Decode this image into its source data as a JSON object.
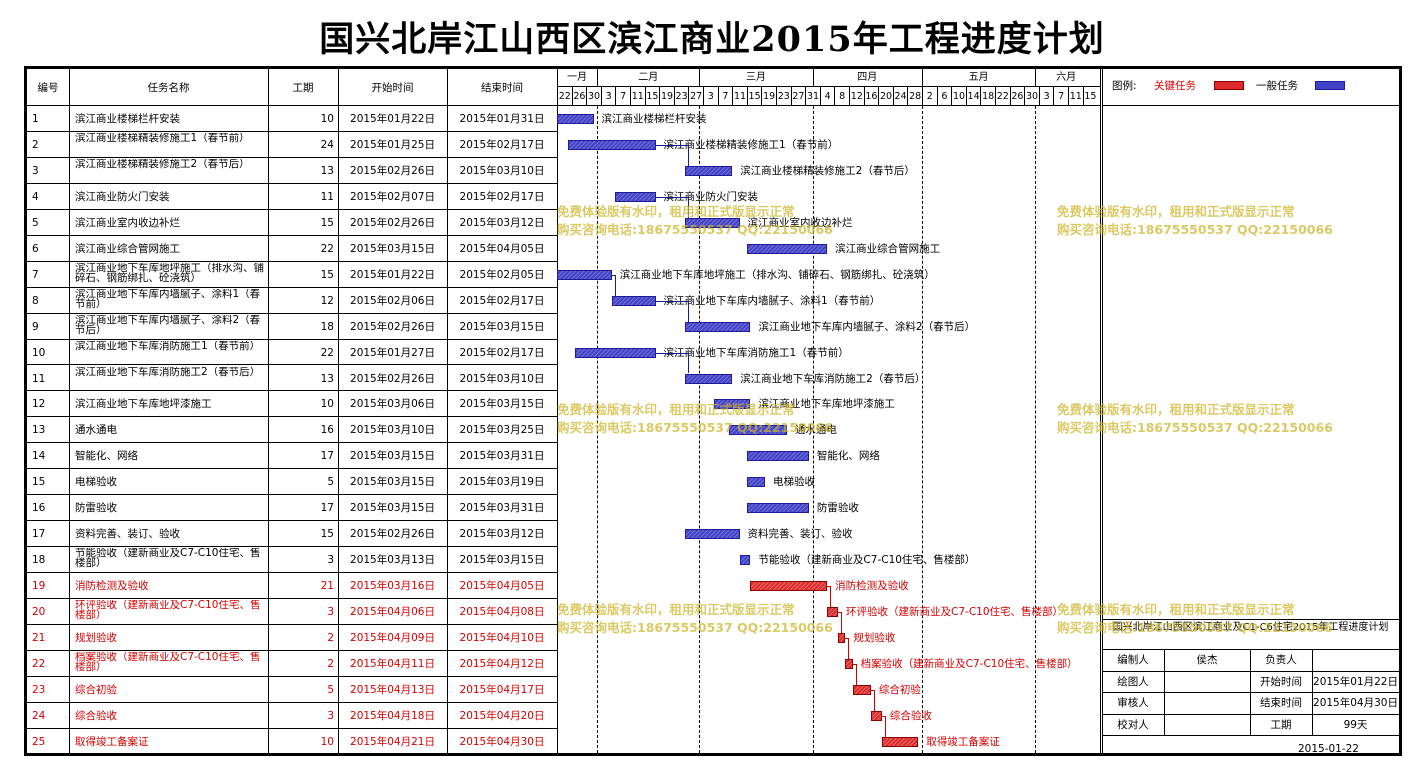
{
  "title": "国兴北岸江山西区滨江商业2015年工程进度计划",
  "columns": {
    "no": "编号",
    "name": "任务名称",
    "duration": "工期",
    "start": "开始时间",
    "end": "结束时间"
  },
  "timeline": {
    "months": [
      "一月",
      "二月",
      "三月",
      "四月",
      "五月",
      "六月"
    ],
    "days": [
      "22",
      "26",
      "30",
      "3",
      "7",
      "11",
      "15",
      "19",
      "23",
      "27",
      "3",
      "7",
      "11",
      "15",
      "19",
      "23",
      "27",
      "31",
      "4",
      "8",
      "12",
      "16",
      "20",
      "24",
      "28",
      "2",
      "6",
      "10",
      "14",
      "18",
      "22",
      "26",
      "30",
      "3",
      "7",
      "11",
      "15"
    ]
  },
  "legend": {
    "label": "图例:",
    "critical": "关键任务",
    "normal": "一般任务"
  },
  "colors": {
    "normal_bar": "#4242c8",
    "critical_bar": "#dd2a2a",
    "critical_text": "#d40000",
    "watermark": "#cdb428"
  },
  "watermark": {
    "line1": "免费体验版有水印，租用和正式版显示正常",
    "line2": "购买咨询电话:18675550537 QQ:22150066"
  },
  "title_block": {
    "project": "国兴北岸江山西区滨江商业及C1-C6住宅2015年工程进度计划",
    "compiler_label": "编制人",
    "compiler": "侯杰",
    "owner_label": "负责人",
    "owner": "",
    "drawer_label": "绘图人",
    "drawer": "",
    "reviewer_label": "审核人",
    "reviewer": "",
    "checker_label": "校对人",
    "checker": "",
    "start_label": "开始时间",
    "start": "2015年01月22日",
    "end_label": "结束时间",
    "end": "2015年04月30日",
    "duration_label": "工期",
    "duration": "99天",
    "date": "2015-01-22"
  },
  "chart_data": {
    "type": "gantt",
    "title": "国兴北岸江山西区滨江商业2015年工程进度计划",
    "x_range": [
      "2015-01-22",
      "2015-06-17"
    ],
    "tasks": [
      {
        "no": "1",
        "name": "滨江商业楼梯栏杆安装",
        "duration": "10",
        "start": "2015年01月22日",
        "end": "2015年01月31日",
        "critical": false
      },
      {
        "no": "2",
        "name": "滨江商业楼梯精装修施工1（春节前）",
        "duration": "24",
        "start": "2015年01月25日",
        "end": "2015年02月17日",
        "critical": false
      },
      {
        "no": "3",
        "name": "滨江商业楼梯精装修施工2（春节后）",
        "duration": "13",
        "start": "2015年02月26日",
        "end": "2015年03月10日",
        "critical": false
      },
      {
        "no": "4",
        "name": "滨江商业防火门安装",
        "duration": "11",
        "start": "2015年02月07日",
        "end": "2015年02月17日",
        "critical": false
      },
      {
        "no": "5",
        "name": "滨江商业室内收边补烂",
        "duration": "15",
        "start": "2015年02月26日",
        "end": "2015年03月12日",
        "critical": false
      },
      {
        "no": "6",
        "name": "滨江商业综合管网施工",
        "duration": "22",
        "start": "2015年03月15日",
        "end": "2015年04月05日",
        "critical": false
      },
      {
        "no": "7",
        "name": "滨江商业地下车库地坪施工（排水沟、铺碎石、钢筋绑扎、砼浇筑）",
        "duration": "15",
        "start": "2015年01月22日",
        "end": "2015年02月05日",
        "critical": false
      },
      {
        "no": "8",
        "name": "滨江商业地下车库内墙腻子、涂料1（春节前）",
        "duration": "12",
        "start": "2015年02月06日",
        "end": "2015年02月17日",
        "critical": false
      },
      {
        "no": "9",
        "name": "滨江商业地下车库内墙腻子、涂料2（春节后）",
        "duration": "18",
        "start": "2015年02月26日",
        "end": "2015年03月15日",
        "critical": false
      },
      {
        "no": "10",
        "name": "滨江商业地下车库消防施工1（春节前）",
        "duration": "22",
        "start": "2015年01月27日",
        "end": "2015年02月17日",
        "critical": false
      },
      {
        "no": "11",
        "name": "滨江商业地下车库消防施工2（春节后）",
        "duration": "13",
        "start": "2015年02月26日",
        "end": "2015年03月10日",
        "critical": false
      },
      {
        "no": "12",
        "name": "滨江商业地下车库地坪漆施工",
        "duration": "10",
        "start": "2015年03月06日",
        "end": "2015年03月15日",
        "critical": false
      },
      {
        "no": "13",
        "name": "通水通电",
        "duration": "16",
        "start": "2015年03月10日",
        "end": "2015年03月25日",
        "critical": false
      },
      {
        "no": "14",
        "name": "智能化、网络",
        "duration": "17",
        "start": "2015年03月15日",
        "end": "2015年03月31日",
        "critical": false
      },
      {
        "no": "15",
        "name": "电梯验收",
        "duration": "5",
        "start": "2015年03月15日",
        "end": "2015年03月19日",
        "critical": false
      },
      {
        "no": "16",
        "name": "防雷验收",
        "duration": "17",
        "start": "2015年03月15日",
        "end": "2015年03月31日",
        "critical": false
      },
      {
        "no": "17",
        "name": "资料完善、装订、验收",
        "duration": "15",
        "start": "2015年02月26日",
        "end": "2015年03月12日",
        "critical": false
      },
      {
        "no": "18",
        "name": "节能验收（建新商业及C7-C10住宅、售楼部）",
        "duration": "3",
        "start": "2015年03月13日",
        "end": "2015年03月15日",
        "critical": false
      },
      {
        "no": "19",
        "name": "消防检测及验收",
        "duration": "21",
        "start": "2015年03月16日",
        "end": "2015年04月05日",
        "critical": true
      },
      {
        "no": "20",
        "name": "环评验收（建新商业及C7-C10住宅、售楼部）",
        "duration": "3",
        "start": "2015年04月06日",
        "end": "2015年04月08日",
        "critical": true
      },
      {
        "no": "21",
        "name": "规划验收",
        "duration": "2",
        "start": "2015年04月09日",
        "end": "2015年04月10日",
        "critical": true
      },
      {
        "no": "22",
        "name": "档案验收（建新商业及C7-C10住宅、售楼部）",
        "duration": "2",
        "start": "2015年04月11日",
        "end": "2015年04月12日",
        "critical": true
      },
      {
        "no": "23",
        "name": "综合初验",
        "duration": "5",
        "start": "2015年04月13日",
        "end": "2015年04月17日",
        "critical": true
      },
      {
        "no": "24",
        "name": "综合验收",
        "duration": "3",
        "start": "2015年04月18日",
        "end": "2015年04月20日",
        "critical": true
      },
      {
        "no": "25",
        "name": "取得竣工备案证",
        "duration": "10",
        "start": "2015年04月21日",
        "end": "2015年04月30日",
        "critical": true
      }
    ]
  }
}
